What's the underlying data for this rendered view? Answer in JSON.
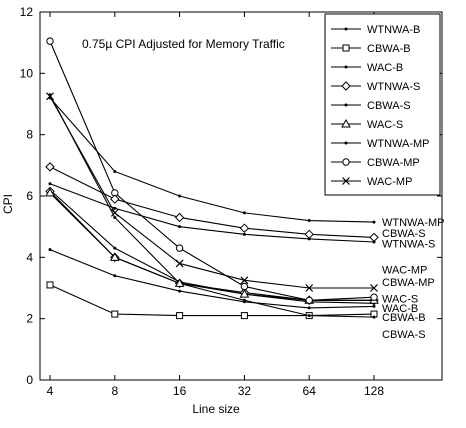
{
  "chart_data": {
    "type": "line",
    "title": "0.75µ CPI Adjusted for Memory Traffic",
    "xlabel": "Line size",
    "ylabel": "CPI",
    "x": [
      4,
      8,
      16,
      32,
      64,
      128
    ],
    "x_scale": "log2",
    "xlim": [
      4,
      128
    ],
    "ylim": [
      0,
      12
    ],
    "y_ticks": [
      0,
      2,
      4,
      6,
      8,
      10,
      12
    ],
    "grid": false,
    "legend_position": "top-right",
    "series": [
      {
        "name": "WTNWA-B",
        "marker": "dot",
        "values": [
          6.2,
          4.3,
          3.2,
          2.8,
          2.55,
          2.5
        ]
      },
      {
        "name": "CBWA-B",
        "marker": "square",
        "values": [
          3.1,
          2.15,
          2.1,
          2.1,
          2.1,
          2.15
        ]
      },
      {
        "name": "WAC-B",
        "marker": "dot",
        "values": [
          4.25,
          3.4,
          2.9,
          2.55,
          2.35,
          2.4
        ]
      },
      {
        "name": "WTNWA-S",
        "marker": "diamond",
        "values": [
          6.15,
          4.0,
          3.15,
          2.85,
          2.6,
          2.6
        ]
      },
      {
        "name": "CBWA-S",
        "marker": "dot",
        "values": [
          9.3,
          5.3,
          3.15,
          2.6,
          2.1,
          2.05
        ]
      },
      {
        "name": "WAC-S",
        "marker": "triangle",
        "values": [
          6.1,
          4.0,
          3.15,
          2.8,
          2.6,
          2.6
        ]
      },
      {
        "name": "WTNWA-MP",
        "marker": "dot",
        "values": [
          9.2,
          6.8,
          6.0,
          5.45,
          5.2,
          5.15
        ]
      },
      {
        "name": "CBWA-MP",
        "marker": "circle",
        "values": [
          11.05,
          6.1,
          4.3,
          3.05,
          2.6,
          2.7
        ]
      },
      {
        "name": "WAC-MP",
        "marker": "x",
        "values": [
          9.25,
          5.45,
          3.8,
          3.25,
          3.0,
          3.0
        ]
      }
    ],
    "series_extra": [
      {
        "values": [
          6.95,
          5.9,
          5.3,
          4.95,
          4.75,
          4.65
        ]
      },
      {
        "values": [
          6.4,
          5.6,
          5.0,
          4.75,
          4.6,
          4.5
        ]
      }
    ],
    "end_labels": [
      {
        "text": "WTNWA-MP",
        "y": 5.15
      },
      {
        "text": "CBWA-S",
        "y": 4.8
      },
      {
        "text": "WTNWA-S",
        "y": 4.45
      },
      {
        "text": "WAC-MP",
        "y": 3.6
      },
      {
        "text": "CBWA-MP",
        "y": 3.2
      },
      {
        "text": "WAC-S",
        "y": 2.65
      },
      {
        "text": "WAC-B",
        "y": 2.35
      },
      {
        "text": "CBWA-B",
        "y": 2.05
      },
      {
        "text": "CBWA-S",
        "y": 1.5
      }
    ]
  }
}
